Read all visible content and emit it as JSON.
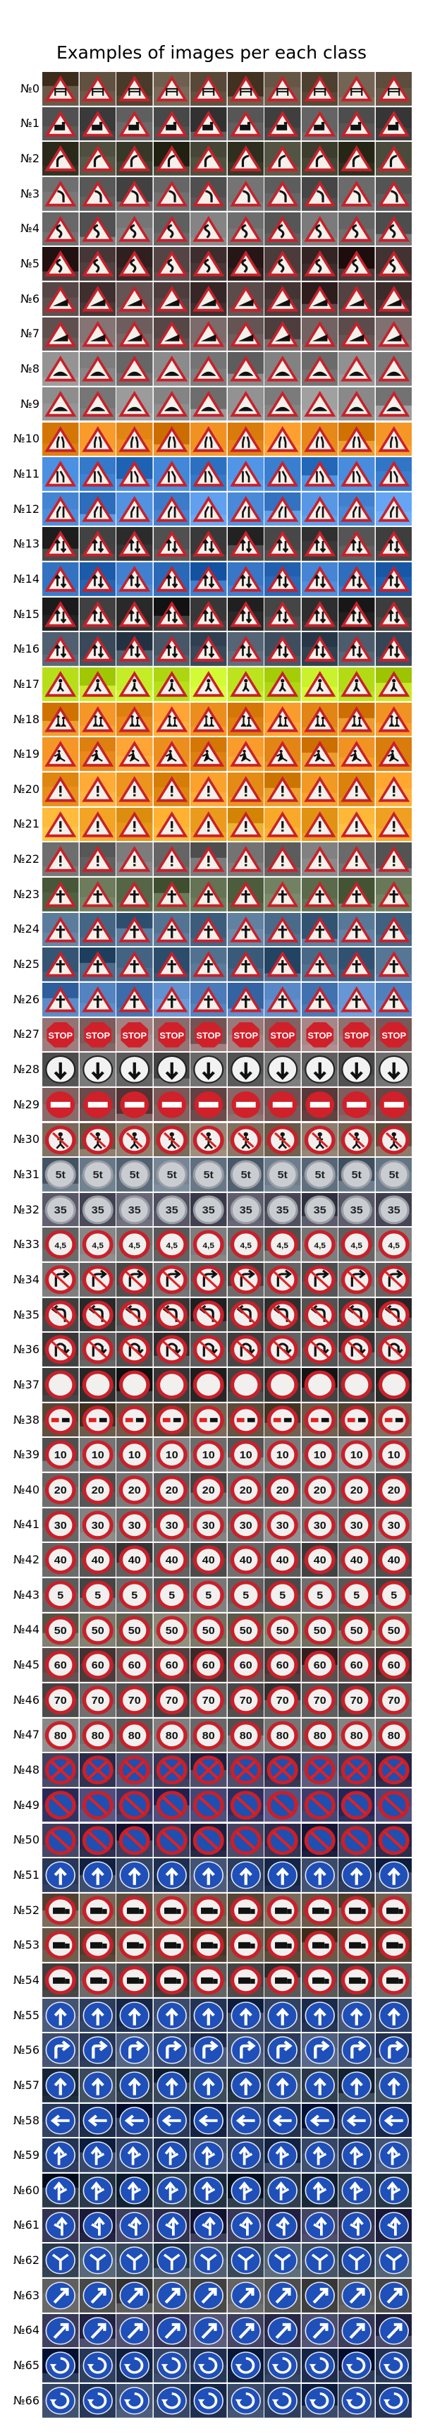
{
  "title": "Examples of images per each class",
  "classes": [
    {
      "label": "№0",
      "shape": "triangle-warning",
      "bg": "#5a4a3a",
      "glyph": "gate"
    },
    {
      "label": "№1",
      "shape": "triangle-warning",
      "bg": "#4a4a4a",
      "glyph": "train"
    },
    {
      "label": "№2",
      "shape": "triangle-warning",
      "bg": "#3a3a2a",
      "glyph": "curve-r"
    },
    {
      "label": "№3",
      "shape": "triangle-warning",
      "bg": "#5a5a5a",
      "glyph": "curve-l"
    },
    {
      "label": "№4",
      "shape": "triangle-warning",
      "bg": "#6a6a6a",
      "glyph": "double-curve"
    },
    {
      "label": "№5",
      "shape": "triangle-warning",
      "bg": "#3a2a2a",
      "glyph": "double-curve"
    },
    {
      "label": "№6",
      "shape": "triangle-warning",
      "bg": "#4a3a3a",
      "glyph": "slope"
    },
    {
      "label": "№7",
      "shape": "triangle-warning",
      "bg": "#6a5a5a",
      "glyph": "slope"
    },
    {
      "label": "№8",
      "shape": "triangle-warning",
      "bg": "#7a7a7a",
      "glyph": "bump"
    },
    {
      "label": "№9",
      "shape": "triangle-warning",
      "bg": "#8a8a8a",
      "glyph": "bump"
    },
    {
      "label": "№10",
      "shape": "triangle-warning",
      "bg": "#e88a1a",
      "glyph": "narrow"
    },
    {
      "label": "№11",
      "shape": "triangle-warning",
      "bg": "#3a7fd0",
      "glyph": "narrow-r"
    },
    {
      "label": "№12",
      "shape": "triangle-warning",
      "bg": "#4a8ad8",
      "glyph": "narrow-l"
    },
    {
      "label": "№13",
      "shape": "triangle-warning",
      "bg": "#3a3a3a",
      "glyph": "two-way"
    },
    {
      "label": "№14",
      "shape": "triangle-warning",
      "bg": "#2a6ab8",
      "glyph": "two-way"
    },
    {
      "label": "№15",
      "shape": "triangle-warning",
      "bg": "#2a2a2a",
      "glyph": "two-way"
    },
    {
      "label": "№16",
      "shape": "triangle-warning",
      "bg": "#3a4a5a",
      "glyph": "two-way"
    },
    {
      "label": "№17",
      "shape": "triangle-warning",
      "bg": "#b8e01a",
      "glyph": "pedestrian"
    },
    {
      "label": "№18",
      "shape": "triangle-warning",
      "bg": "#e88a1a",
      "glyph": "children"
    },
    {
      "label": "№19",
      "shape": "triangle-warning",
      "bg": "#e88a1a",
      "glyph": "works"
    },
    {
      "label": "№20",
      "shape": "triangle-warning",
      "bg": "#e8901a",
      "glyph": "bang"
    },
    {
      "label": "№21",
      "shape": "triangle-warning",
      "bg": "#f0a020",
      "glyph": "bang"
    },
    {
      "label": "№22",
      "shape": "triangle-warning",
      "bg": "#6a6a6a",
      "glyph": "bang"
    },
    {
      "label": "№23",
      "shape": "triangle-warning",
      "bg": "#5a6a4a",
      "glyph": "crossroad"
    },
    {
      "label": "№24",
      "shape": "triangle-warning",
      "bg": "#4a6a8a",
      "glyph": "crossroad"
    },
    {
      "label": "№25",
      "shape": "triangle-warning",
      "bg": "#3a5a7a",
      "glyph": "crossroad"
    },
    {
      "label": "№26",
      "shape": "triangle-warning",
      "bg": "#4a7ab8",
      "glyph": "crossroad"
    },
    {
      "label": "№27",
      "shape": "stop",
      "bg": "#8a6a6a",
      "glyph": "stop"
    },
    {
      "label": "№28",
      "shape": "circle-white",
      "bg": "#5a5a5a",
      "glyph": "arrow-down"
    },
    {
      "label": "№29",
      "shape": "no-entry",
      "bg": "#6a4a4a",
      "glyph": "bar"
    },
    {
      "label": "№30",
      "shape": "circle-red-ring",
      "bg": "#7a6a5a",
      "glyph": "no-ped"
    },
    {
      "label": "№31",
      "shape": "circle-gray",
      "bg": "#5a6a7a",
      "glyph": "5t"
    },
    {
      "label": "№32",
      "shape": "circle-gray",
      "bg": "#4a4a5a",
      "glyph": "35"
    },
    {
      "label": "№33",
      "shape": "circle-red-ring",
      "bg": "#6a6a6a",
      "glyph": "4,5"
    },
    {
      "label": "№34",
      "shape": "circle-red-ring",
      "bg": "#5a5a5a",
      "glyph": "no-turn"
    },
    {
      "label": "№35",
      "shape": "circle-red-ring",
      "bg": "#3a3a3a",
      "glyph": "no-turn-l"
    },
    {
      "label": "№36",
      "shape": "circle-red-ring",
      "bg": "#4a4a4a",
      "glyph": "no-u"
    },
    {
      "label": "№37",
      "shape": "circle-red-ring",
      "bg": "#2a2a2a",
      "glyph": "blank"
    },
    {
      "label": "№38",
      "shape": "circle-red-ring",
      "bg": "#5a4a3a",
      "glyph": "no-overtake"
    },
    {
      "label": "№39",
      "shape": "circle-red-ring",
      "bg": "#6a6a6a",
      "glyph": "10"
    },
    {
      "label": "№40",
      "shape": "circle-red-ring",
      "bg": "#5a5a5a",
      "glyph": "20"
    },
    {
      "label": "№41",
      "shape": "circle-red-ring",
      "bg": "#6a6a6a",
      "glyph": "30"
    },
    {
      "label": "№42",
      "shape": "circle-red-ring",
      "bg": "#4a4a4a",
      "glyph": "40"
    },
    {
      "label": "№43",
      "shape": "circle-red-ring",
      "bg": "#5a5a5a",
      "glyph": "5"
    },
    {
      "label": "№44",
      "shape": "circle-red-ring",
      "bg": "#6a6a5a",
      "glyph": "50"
    },
    {
      "label": "№45",
      "shape": "circle-red-ring",
      "bg": "#4a3a3a",
      "glyph": "60"
    },
    {
      "label": "№46",
      "shape": "circle-red-ring",
      "bg": "#4a4a4a",
      "glyph": "70"
    },
    {
      "label": "№47",
      "shape": "circle-red-ring",
      "bg": "#6a6a6a",
      "glyph": "80"
    },
    {
      "label": "№48",
      "shape": "no-stopping",
      "bg": "#3a3a5a",
      "glyph": "x"
    },
    {
      "label": "№49",
      "shape": "no-stopping",
      "bg": "#3a3a6a",
      "glyph": "slash"
    },
    {
      "label": "№50",
      "shape": "no-stopping",
      "bg": "#2a2a4a",
      "glyph": "slash"
    },
    {
      "label": "№51",
      "shape": "circle-blue",
      "bg": "#2a3a5a",
      "glyph": "arrow-up"
    },
    {
      "label": "№52",
      "shape": "circle-red-ring",
      "bg": "#6a5a4a",
      "glyph": "truck"
    },
    {
      "label": "№53",
      "shape": "circle-red-ring",
      "bg": "#5a4a3a",
      "glyph": "truck"
    },
    {
      "label": "№54",
      "shape": "circle-red-ring",
      "bg": "#4a4a4a",
      "glyph": "truck"
    },
    {
      "label": "№55",
      "shape": "circle-blue",
      "bg": "#2a3a5a",
      "glyph": "arrow-up"
    },
    {
      "label": "№56",
      "shape": "circle-blue",
      "bg": "#3a4a6a",
      "glyph": "arrow-right"
    },
    {
      "label": "№57",
      "shape": "circle-blue",
      "bg": "#2a3a4a",
      "glyph": "arrow-up"
    },
    {
      "label": "№58",
      "shape": "circle-blue",
      "bg": "#1a2a4a",
      "glyph": "arrow-left"
    },
    {
      "label": "№59",
      "shape": "circle-blue",
      "bg": "#2a3a5a",
      "glyph": "arrow-ur"
    },
    {
      "label": "№60",
      "shape": "circle-blue",
      "bg": "#1a2a3a",
      "glyph": "arrow-ur"
    },
    {
      "label": "№61",
      "shape": "circle-blue",
      "bg": "#2a2a4a",
      "glyph": "arrow-ul"
    },
    {
      "label": "№62",
      "shape": "circle-blue",
      "bg": "#3a4a5a",
      "glyph": "arrow-lr"
    },
    {
      "label": "№63",
      "shape": "circle-blue",
      "bg": "#4a4a4a",
      "glyph": "arrow-diag"
    },
    {
      "label": "№64",
      "shape": "circle-blue",
      "bg": "#3a3a5a",
      "glyph": "arrow-diag"
    },
    {
      "label": "№65",
      "shape": "circle-blue",
      "bg": "#1a2a4a",
      "glyph": "round"
    },
    {
      "label": "№66",
      "shape": "circle-blue",
      "bg": "#2a3a5a",
      "glyph": "round"
    }
  ]
}
